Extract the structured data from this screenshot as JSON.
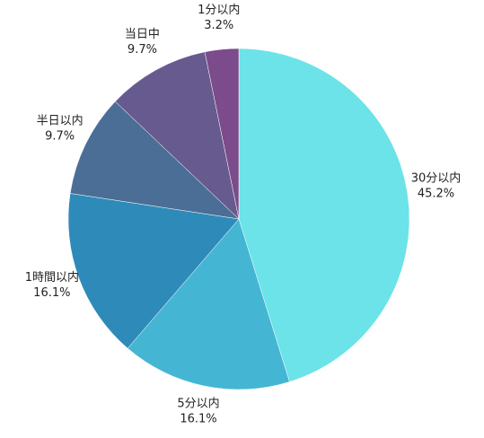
{
  "chart_data": {
    "type": "pie",
    "categories": [
      "30分以内",
      "5分以内",
      "1時間以内",
      "半日以内",
      "当日中",
      "1分以内"
    ],
    "values": [
      45.2,
      16.1,
      16.1,
      9.7,
      9.7,
      3.2
    ],
    "value_labels": [
      "45.2%",
      "16.1%",
      "16.1%",
      "9.7%",
      "9.7%",
      "3.2%"
    ],
    "colors": [
      "#6ce3e8",
      "#44b6d4",
      "#2e8bb9",
      "#4b6e97",
      "#665a8f",
      "#7b4b8b"
    ]
  }
}
